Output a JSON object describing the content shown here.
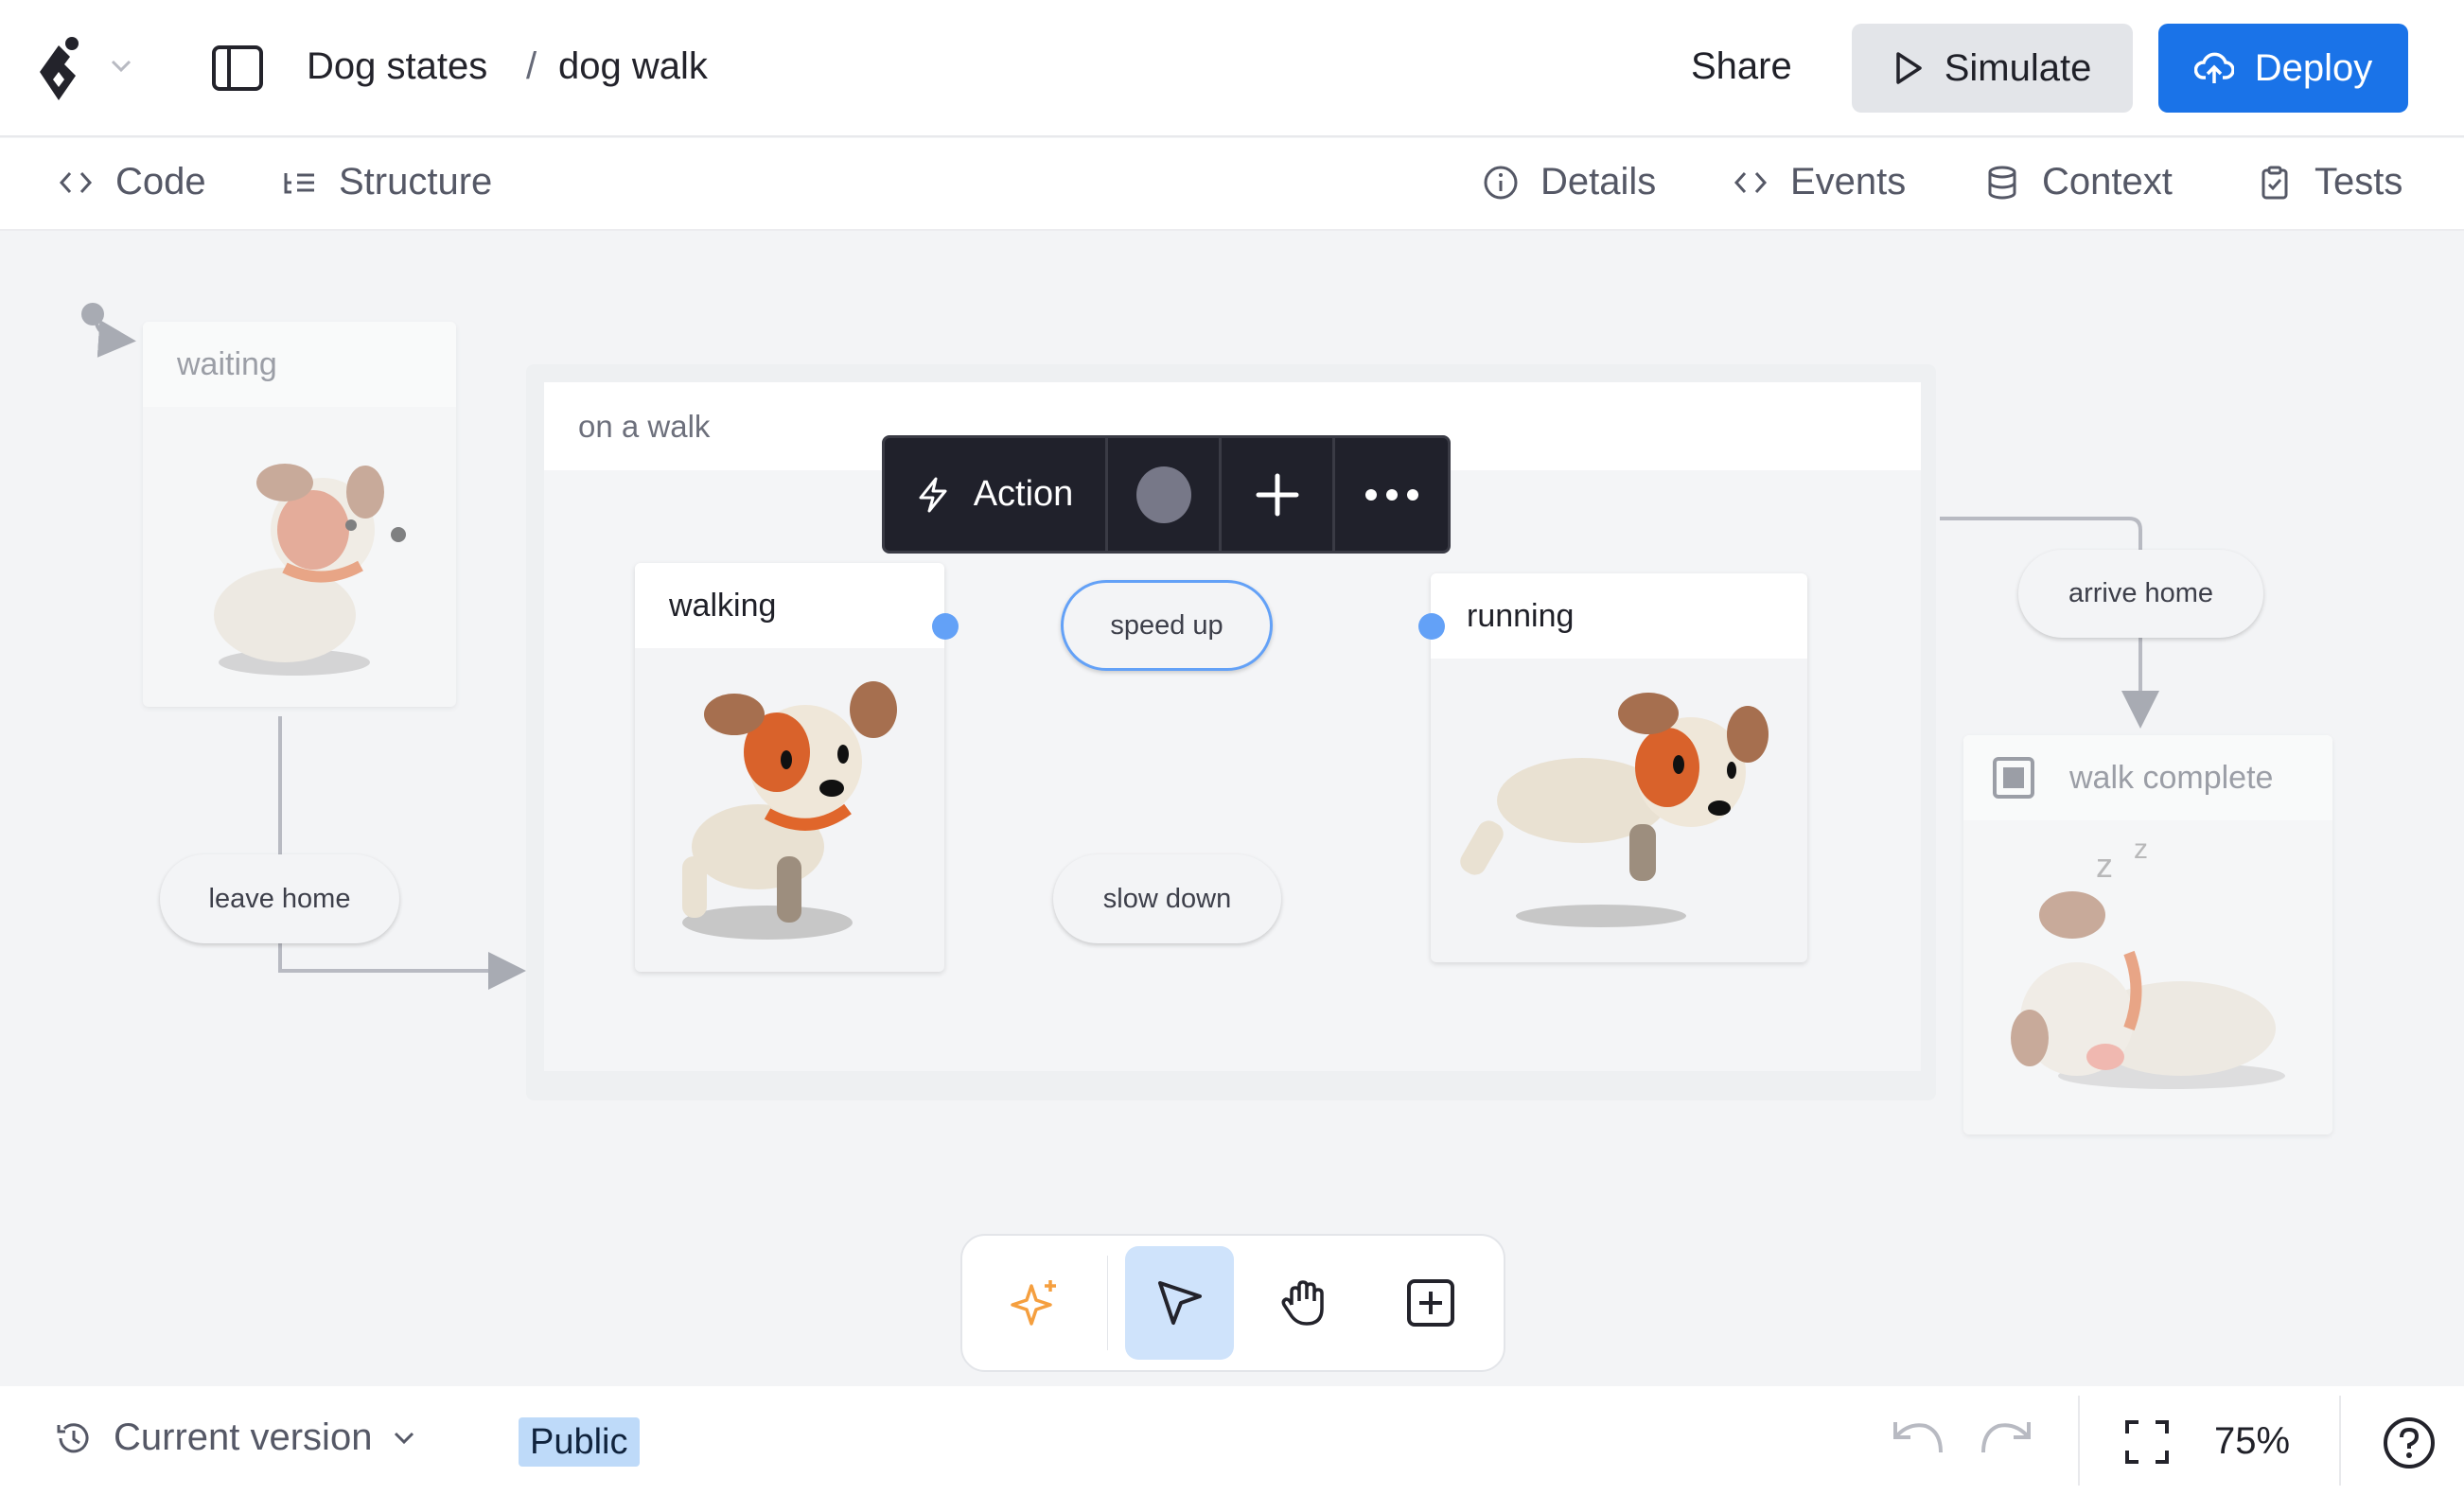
{
  "header": {
    "project": "Dog states",
    "separator": "/",
    "machine": "dog walk",
    "share": "Share",
    "simulate": "Simulate",
    "deploy": "Deploy",
    "accent": "#1a73e8"
  },
  "tabs_left": [
    {
      "label": "Code",
      "icon": "code-icon"
    },
    {
      "label": "Structure",
      "icon": "structure-icon"
    }
  ],
  "tabs_right": [
    {
      "label": "Details",
      "icon": "info-icon"
    },
    {
      "label": "Events",
      "icon": "code-icon"
    },
    {
      "label": "Context",
      "icon": "database-icon"
    },
    {
      "label": "Tests",
      "icon": "clipboard-icon"
    }
  ],
  "canvas": {
    "states": {
      "waiting": "waiting",
      "on_a_walk": "on a walk",
      "walking": "walking",
      "running": "running",
      "walk_complete": "walk complete"
    },
    "transitions": {
      "leave_home": "leave home",
      "speed_up": "speed up",
      "slow_down": "slow down",
      "arrive_home": "arrive home"
    },
    "action_toolbar": {
      "label": "Action"
    }
  },
  "tools": [
    {
      "name": "ai-sparkle-icon"
    },
    {
      "name": "select-pointer-icon",
      "active": true
    },
    {
      "name": "hand-pan-icon"
    },
    {
      "name": "add-state-icon"
    }
  ],
  "footer": {
    "version": "Current version",
    "visibility": "Public",
    "zoom": "75%"
  }
}
